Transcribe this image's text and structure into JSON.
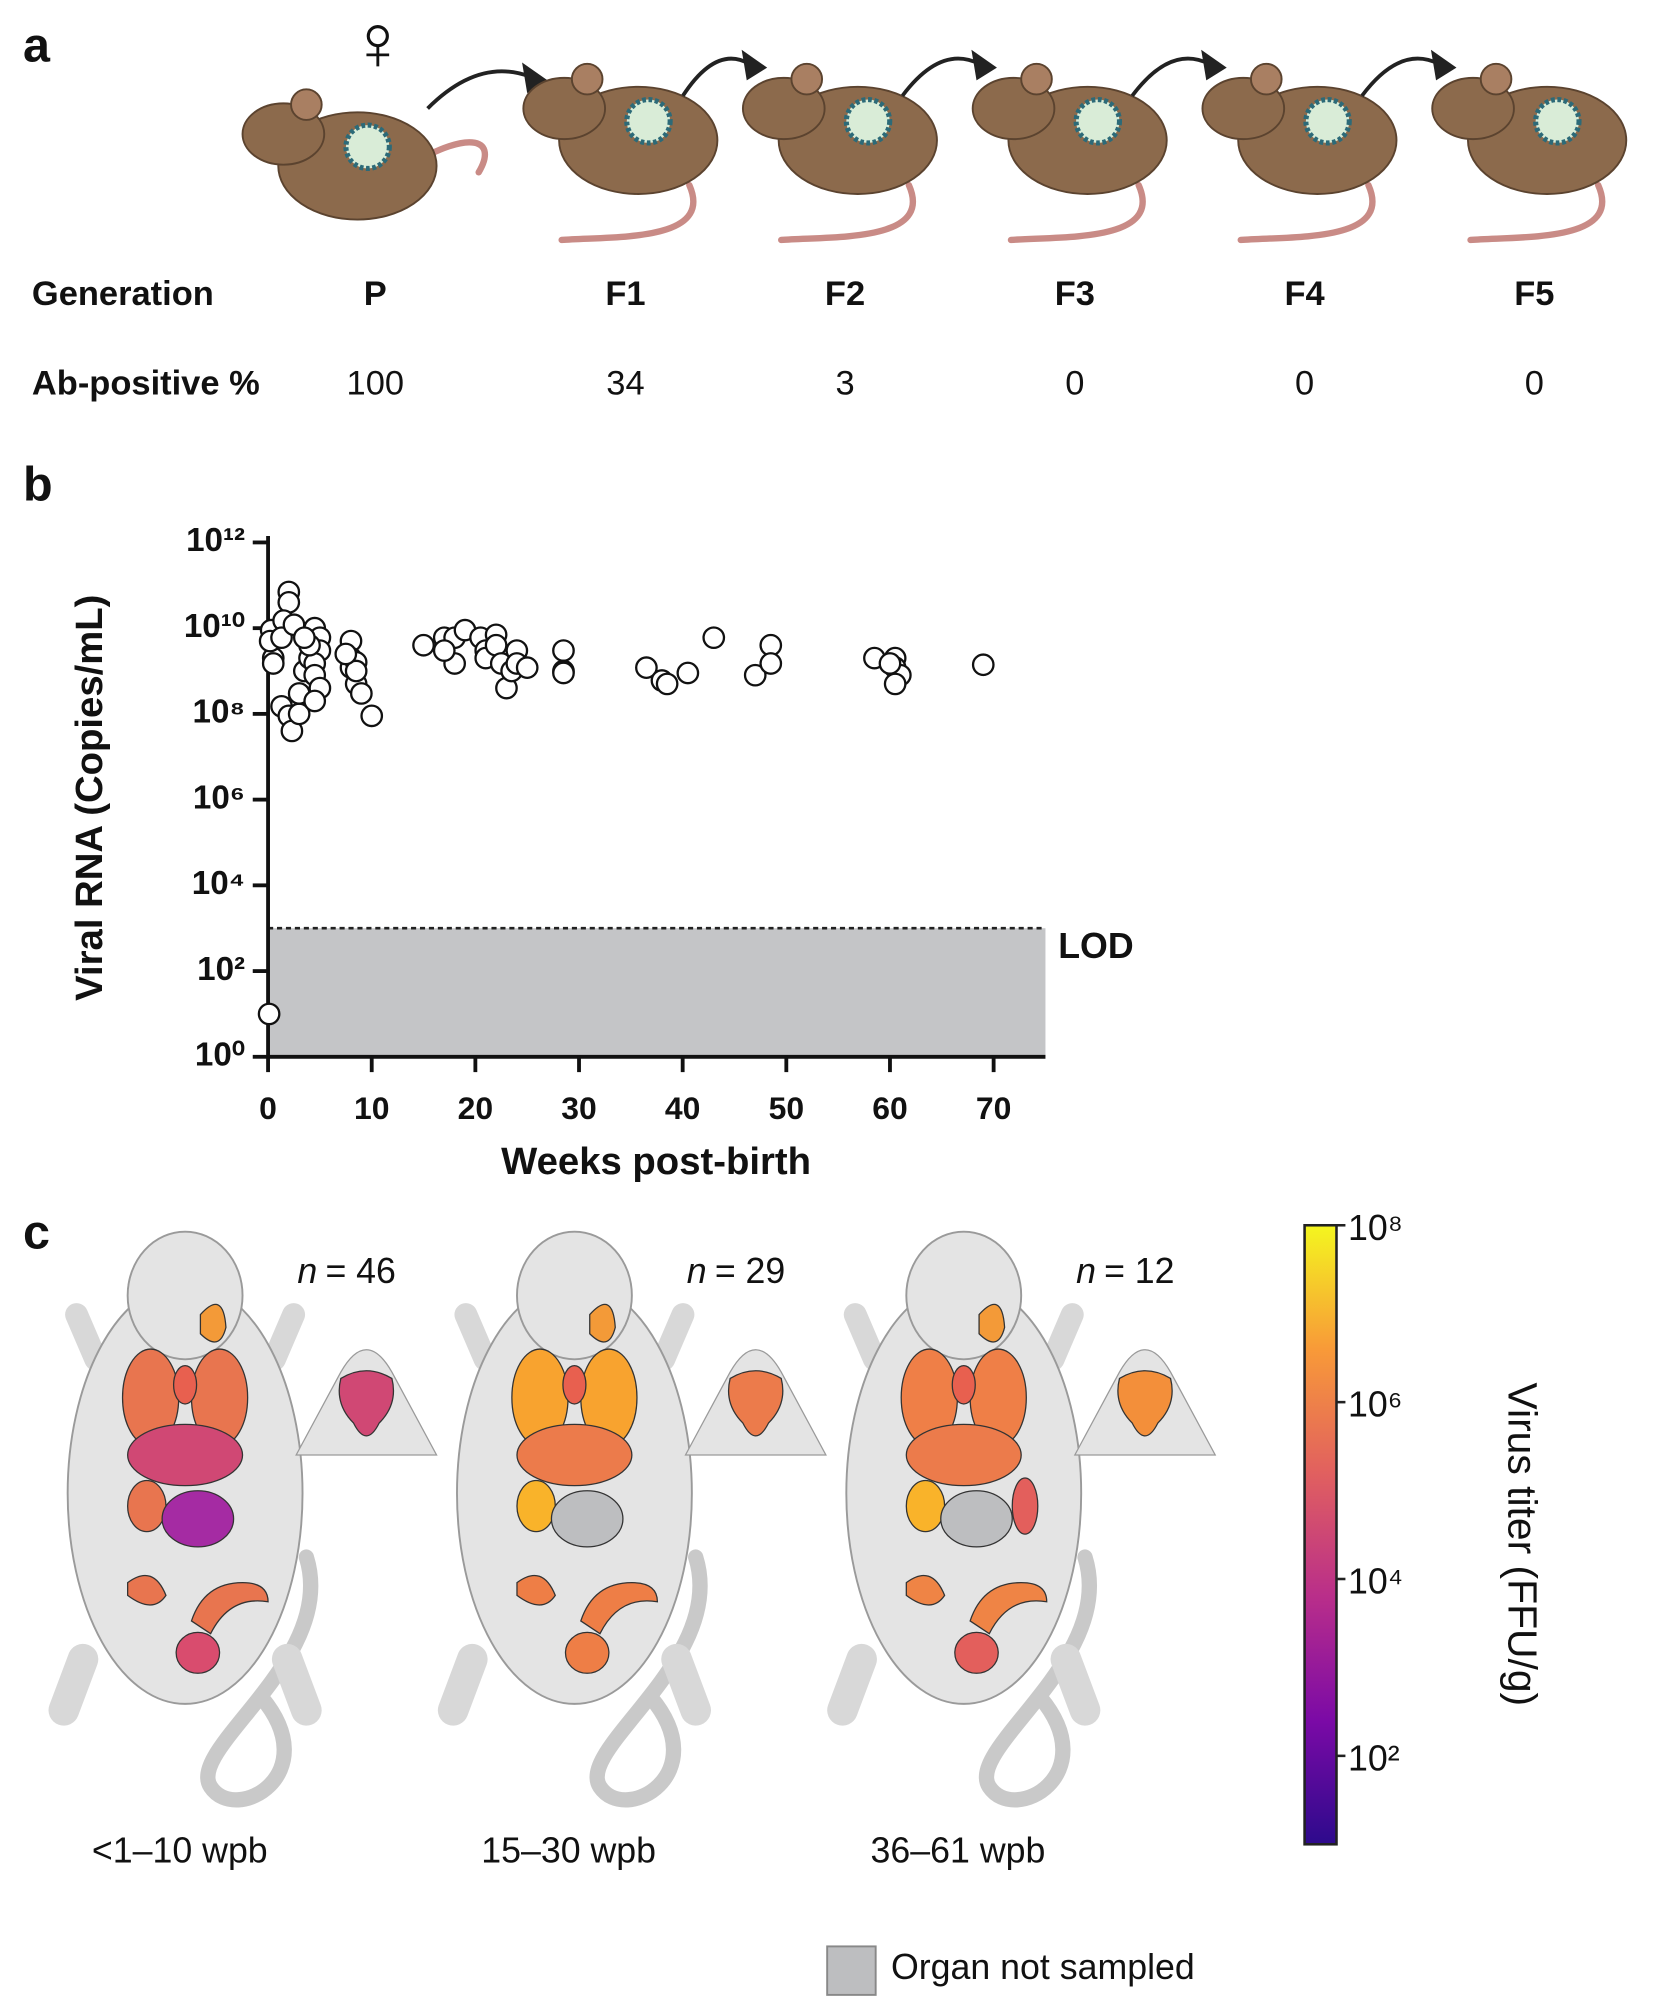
{
  "panel_a": {
    "label": "a",
    "symbol": "♀",
    "row_labels": [
      "Generation",
      "Ab-positive %"
    ],
    "generations": [
      "P",
      "F1",
      "F2",
      "F3",
      "F4",
      "F5"
    ],
    "ab_positive": [
      100,
      34,
      3,
      0,
      0,
      0
    ]
  },
  "panel_b": {
    "label": "b"
  },
  "chart_data": {
    "type": "scatter",
    "x_label": "Weeks post-birth",
    "y_label": "Viral RNA (Copies/mL)",
    "log_y": true,
    "xlim": [
      0,
      75
    ],
    "ylim": [
      1,
      1000000000000
    ],
    "xticks": [
      0,
      10,
      20,
      30,
      40,
      50,
      60,
      70
    ],
    "yticks": [
      {
        "value": 1,
        "label": "10⁰"
      },
      {
        "value": 100,
        "label": "10²"
      },
      {
        "value": 10000,
        "label": "10⁴"
      },
      {
        "value": 1000000,
        "label": "10⁶"
      },
      {
        "value": 100000000,
        "label": "10⁸"
      },
      {
        "value": 10000000000,
        "label": "10¹⁰"
      },
      {
        "value": 1000000000000,
        "label": "10¹²"
      }
    ],
    "lod": {
      "value": 1000,
      "label": "LOD"
    },
    "color": "#ffffff",
    "x": [
      0.1,
      0.3,
      0.5,
      0.2,
      0.5,
      2,
      2,
      1.5,
      1.3,
      2.5,
      1.3,
      2,
      2.3,
      3,
      3,
      3.5,
      4,
      4,
      4.5,
      4.5,
      5,
      5,
      4.5,
      4.5,
      5,
      4,
      3.5,
      4.5,
      8,
      8,
      8,
      8.5,
      8.5,
      9,
      10,
      8.5,
      7.5,
      15,
      17,
      18,
      18,
      19,
      17,
      20.5,
      21,
      21,
      22,
      22,
      22.5,
      23,
      23.5,
      24,
      24,
      25,
      28.5,
      28.5,
      28.5,
      36.5,
      38,
      38.5,
      40.5,
      43,
      47,
      48.5,
      48.5,
      58.5,
      60.5,
      60.5,
      61,
      60.5,
      60,
      69
    ],
    "values": [
      10,
      9000000000,
      2000000000,
      5000000000,
      1500000000,
      70000000000,
      40000000000,
      15000000000,
      6000000000,
      12000000000,
      150000000,
      90000000,
      40000000,
      100000000,
      300000000,
      1000000000,
      2000000000,
      5000000000,
      8000000000,
      10000000000,
      6000000000,
      3000000000,
      1500000000,
      800000000,
      400000000,
      4000000000,
      6000000000,
      200000000,
      5000000000,
      2000000000,
      1200000000,
      1600000000,
      500000000,
      300000000,
      90000000,
      1000000000,
      2500000000,
      4000000000,
      6000000000,
      1500000000,
      6000000000,
      9000000000,
      3000000000,
      6000000000,
      3000000000,
      2000000000,
      7000000000,
      4000000000,
      1500000000,
      400000000,
      1000000000,
      3000000000,
      1500000000,
      1200000000,
      3000000000,
      1000000000,
      900000000,
      1200000000,
      600000000,
      500000000,
      900000000,
      6000000000,
      800000000,
      4000000000,
      1500000000,
      2000000000,
      2000000000,
      1200000000,
      800000000,
      500000000,
      1500000000,
      1400000000
    ]
  },
  "panel_c": {
    "label": "c",
    "n_symbol": "n",
    "equals": "=",
    "samples": [
      {
        "n": 46,
        "label": "<1–10 wpb"
      },
      {
        "n": 29,
        "label": "15–30 wpb"
      },
      {
        "n": 12,
        "label": "36–61 wpb"
      }
    ],
    "colorbar": {
      "label": "Virus titer (FFU/g)",
      "log": true,
      "lim": [
        10,
        100000000
      ],
      "ticks": [
        {
          "value": 100,
          "label": "10²"
        },
        {
          "value": 10000,
          "label": "10⁴"
        },
        {
          "value": 1000000,
          "label": "10⁶"
        },
        {
          "value": 100000000,
          "label": "10⁸"
        }
      ]
    },
    "legend": "Organ not sampled"
  }
}
